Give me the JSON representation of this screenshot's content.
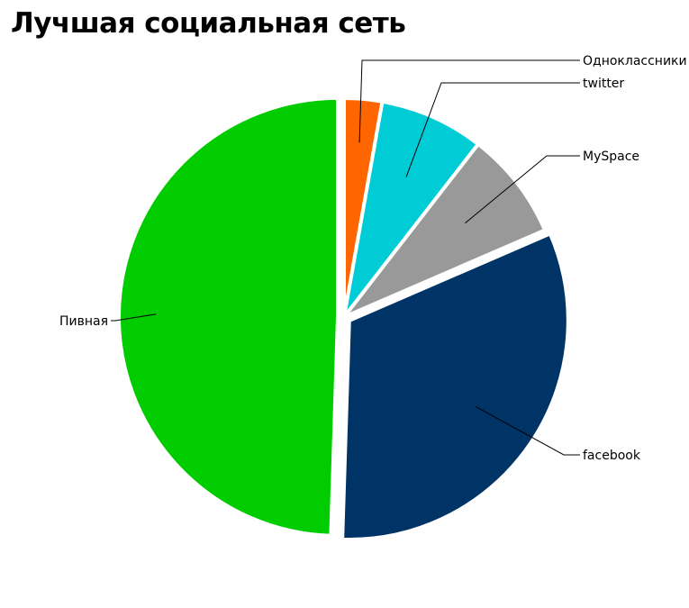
{
  "chart_data": {
    "type": "pie",
    "title": "Лучшая социальная сеть",
    "start_angle_deg": 0,
    "slices": [
      {
        "label": "Одноклассники",
        "value": 2.8,
        "color": "#ff6600",
        "exploded": false
      },
      {
        "label": "twitter",
        "value": 7.7,
        "color": "#00ccd6",
        "exploded": false
      },
      {
        "label": "MySpace",
        "value": 8.0,
        "color": "#999999",
        "exploded": false
      },
      {
        "label": "facebook",
        "value": 32.0,
        "color": "#003366",
        "exploded": true
      },
      {
        "label": "Пивная",
        "value": 49.5,
        "color": "#00cc00",
        "exploded": true
      }
    ]
  }
}
